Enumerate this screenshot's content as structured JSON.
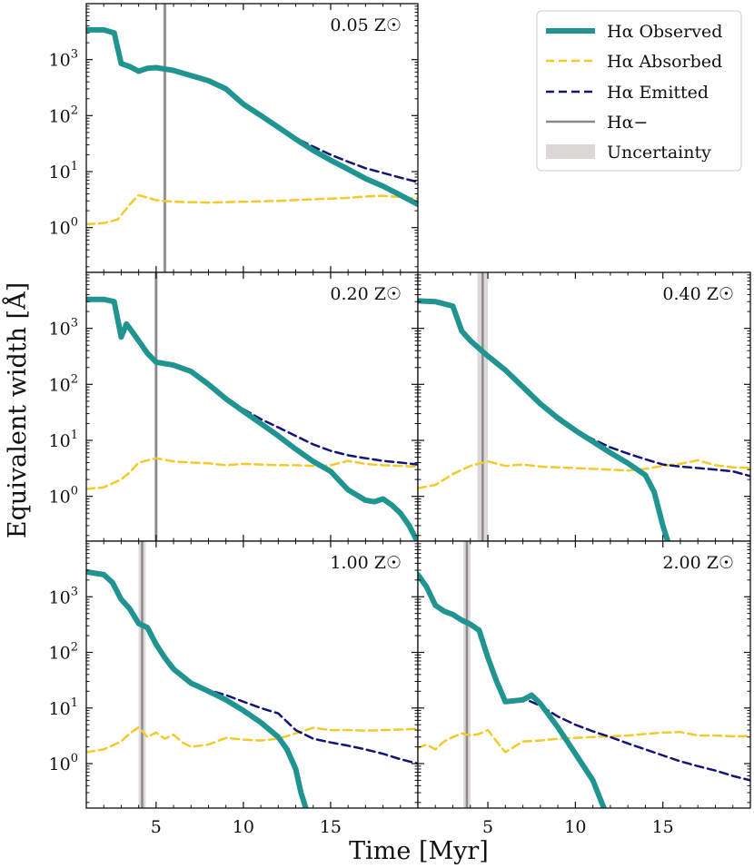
{
  "figure": {
    "xlabel": "Time [Myr]",
    "ylabel": "Equivalent width [Å]",
    "legend": {
      "placement": "top-right",
      "entries": [
        {
          "label": "Hα Observed",
          "style": "thick-solid",
          "color": "#1f9490"
        },
        {
          "label": "Hα Absorbed",
          "style": "dashed",
          "color": "#f5c92a"
        },
        {
          "label": "Hα Emitted",
          "style": "dashed",
          "color": "#141478"
        },
        {
          "label": "Hα−",
          "style": "solid",
          "color": "#8a8a8a"
        },
        {
          "label": "Uncertainty",
          "style": "band",
          "color": "#dcd8d8"
        }
      ]
    },
    "colors": {
      "observed": "#1f9490",
      "absorbed": "#f5c92a",
      "emitted": "#141478",
      "marker": "#8a8a8a",
      "band": "#dcd8d8"
    }
  },
  "chart_data": [
    {
      "type": "line",
      "panel": "0.05 Z☉",
      "xlim": [
        1,
        20
      ],
      "ylim_log10": [
        -0.8,
        4.0
      ],
      "yscale": "log",
      "xticks": [
        5,
        10,
        15
      ],
      "yticks": [
        "10^0",
        "10^1",
        "10^2",
        "10^3"
      ],
      "marker": {
        "t": 5.5,
        "band": [
          5.4,
          5.6
        ]
      },
      "series": [
        {
          "name": "Hα Observed",
          "x": [
            1,
            2,
            2.6,
            3,
            3.5,
            4,
            4.5,
            5,
            6,
            7,
            8,
            9,
            10,
            11,
            12,
            13,
            14,
            15,
            16,
            17,
            18,
            19,
            20
          ],
          "values": [
            3400,
            3400,
            3000,
            850,
            750,
            620,
            700,
            720,
            640,
            520,
            420,
            300,
            160,
            100,
            62,
            38,
            24,
            16,
            11,
            7.5,
            5.5,
            3.8,
            2.6
          ]
        },
        {
          "name": "Hα Absorbed",
          "x": [
            1,
            2,
            2.8,
            3.5,
            4,
            5,
            6,
            8,
            10,
            12,
            14,
            16,
            17,
            18,
            19,
            20
          ],
          "values": [
            1.15,
            1.2,
            1.4,
            2.6,
            3.8,
            3.1,
            2.9,
            2.8,
            2.9,
            3.0,
            3.2,
            3.4,
            3.6,
            3.7,
            3.5,
            3.3
          ]
        },
        {
          "name": "Hα Emitted",
          "x": [
            12,
            13,
            14,
            15,
            16,
            17,
            18,
            19,
            20
          ],
          "values": [
            62,
            40,
            28,
            20,
            15,
            11.5,
            9.5,
            7.8,
            6.5
          ]
        }
      ]
    },
    {
      "type": "line",
      "panel": "0.20 Z☉",
      "xlim": [
        1,
        20
      ],
      "ylim_log10": [
        -0.8,
        4.0
      ],
      "yscale": "log",
      "xticks": [
        5,
        10,
        15
      ],
      "yticks": [
        "10^0",
        "10^1",
        "10^2",
        "10^3"
      ],
      "marker": {
        "t": 5.0,
        "band": [
          4.9,
          5.1
        ]
      },
      "series": [
        {
          "name": "Hα Observed",
          "x": [
            1,
            2,
            2.6,
            3,
            3.3,
            3.6,
            4,
            4.5,
            5,
            6,
            7,
            8,
            9,
            10,
            11,
            12,
            13,
            14,
            15,
            16,
            17,
            17.5,
            18,
            18.5,
            19,
            19.5,
            20
          ],
          "values": [
            3300,
            3300,
            3000,
            700,
            1200,
            900,
            600,
            360,
            250,
            220,
            170,
            100,
            55,
            33,
            20,
            12,
            7,
            4.2,
            2.8,
            1.3,
            0.85,
            0.8,
            0.9,
            0.7,
            0.5,
            0.3,
            0.15
          ]
        },
        {
          "name": "Hα Absorbed",
          "x": [
            1,
            2,
            3,
            3.5,
            4,
            5,
            6,
            7,
            8,
            9,
            10,
            11,
            12,
            13,
            14,
            15,
            16,
            17,
            18,
            19,
            20
          ],
          "values": [
            1.35,
            1.45,
            2.0,
            2.7,
            4.0,
            4.8,
            4.2,
            4.0,
            3.9,
            3.6,
            3.8,
            3.7,
            3.6,
            3.6,
            3.5,
            3.6,
            4.3,
            3.8,
            3.6,
            3.5,
            3.4
          ]
        },
        {
          "name": "Hα Emitted",
          "x": [
            10,
            11,
            12,
            13,
            14,
            15,
            16,
            17,
            18,
            19,
            20
          ],
          "values": [
            36,
            24,
            17,
            12,
            8.5,
            6.5,
            5.4,
            4.8,
            4.3,
            4.0,
            3.7
          ]
        }
      ]
    },
    {
      "type": "line",
      "panel": "0.40 Z☉",
      "xlim": [
        1,
        20
      ],
      "ylim_log10": [
        -0.8,
        4.0
      ],
      "yscale": "log",
      "xticks": [
        5,
        10,
        15
      ],
      "yticks": [
        "10^0",
        "10^1",
        "10^2",
        "10^3"
      ],
      "marker": {
        "t": 4.7,
        "band": [
          4.4,
          5.0
        ]
      },
      "series": [
        {
          "name": "Hα Observed",
          "x": [
            1,
            2,
            3,
            3.5,
            4,
            5,
            6,
            7,
            8,
            9,
            10,
            11,
            12,
            13,
            14,
            14.5,
            15,
            15.3
          ],
          "values": [
            3100,
            3000,
            2500,
            900,
            600,
            320,
            180,
            90,
            45,
            25,
            15,
            9.5,
            6.0,
            3.9,
            2.4,
            1.2,
            0.3,
            0.15
          ]
        },
        {
          "name": "Hα Absorbed",
          "x": [
            1,
            2,
            3,
            4,
            5,
            6,
            7,
            8,
            9,
            10,
            11,
            12,
            13,
            14,
            15,
            16,
            17,
            18,
            19,
            20
          ],
          "values": [
            1.4,
            1.6,
            2.5,
            3.5,
            4.2,
            3.5,
            3.7,
            3.4,
            3.3,
            3.2,
            3.1,
            3.0,
            2.9,
            3.1,
            3.5,
            3.8,
            4.4,
            3.6,
            3.3,
            3.2
          ]
        },
        {
          "name": "Hα Emitted",
          "x": [
            10,
            11,
            12,
            13,
            14,
            15,
            16,
            17,
            18,
            19,
            20
          ],
          "values": [
            15,
            10.5,
            7.5,
            5.8,
            4.6,
            3.7,
            3.4,
            3.2,
            3.0,
            2.8,
            2.3
          ]
        }
      ]
    },
    {
      "type": "line",
      "panel": "1.00 Z☉",
      "xlim": [
        1,
        20
      ],
      "ylim_log10": [
        -0.8,
        4.0
      ],
      "yscale": "log",
      "xticks": [
        5,
        10,
        15
      ],
      "yticks": [
        "10^0",
        "10^1",
        "10^2",
        "10^3"
      ],
      "marker": {
        "t": 4.2,
        "band": [
          4.0,
          4.4
        ]
      },
      "series": [
        {
          "name": "Hα Observed",
          "x": [
            1,
            2,
            2.5,
            3,
            3.5,
            4,
            4.5,
            5,
            5.5,
            6,
            7,
            8,
            9,
            10,
            11,
            12,
            12.5,
            13,
            13.3,
            13.6
          ],
          "values": [
            2800,
            2500,
            1800,
            900,
            600,
            330,
            280,
            140,
            80,
            50,
            28,
            20,
            14,
            9,
            5.5,
            3.0,
            1.8,
            0.8,
            0.3,
            0.15
          ]
        },
        {
          "name": "Hα Absorbed",
          "x": [
            1,
            2,
            3,
            3.5,
            4,
            4.5,
            5,
            5.5,
            6,
            6.5,
            7,
            8,
            9,
            10,
            11,
            12,
            13,
            14,
            15,
            16,
            17,
            18,
            19,
            20
          ],
          "values": [
            1.6,
            1.8,
            2.5,
            3.5,
            4.5,
            3.0,
            3.6,
            2.8,
            3.3,
            2.4,
            2.0,
            2.2,
            2.9,
            2.7,
            2.6,
            2.8,
            3.5,
            4.4,
            4.0,
            4.0,
            3.9,
            4.0,
            4.1,
            4.2
          ]
        },
        {
          "name": "Hα Emitted",
          "x": [
            7,
            8,
            9,
            10,
            11,
            12,
            13,
            14,
            15,
            16,
            17,
            18,
            19,
            20
          ],
          "values": [
            28,
            21,
            17,
            13,
            10,
            8.0,
            4.0,
            2.8,
            2.4,
            2.1,
            1.8,
            1.5,
            1.2,
            1.0
          ]
        }
      ]
    },
    {
      "type": "line",
      "panel": "2.00 Z☉",
      "xlim": [
        1,
        20
      ],
      "ylim_log10": [
        -0.8,
        4.0
      ],
      "yscale": "log",
      "xticks": [
        5,
        10,
        15
      ],
      "yticks": [
        "10^0",
        "10^1",
        "10^2",
        "10^3"
      ],
      "marker": {
        "t": 3.8,
        "band": [
          3.6,
          4.0
        ]
      },
      "series": [
        {
          "name": "Hα Observed",
          "x": [
            1,
            1.5,
            2,
            2.5,
            3,
            3.5,
            4,
            4.5,
            5,
            5.5,
            6,
            7,
            7.5,
            8,
            9,
            10,
            11,
            11.5,
            11.8
          ],
          "values": [
            2500,
            1500,
            700,
            550,
            480,
            380,
            320,
            250,
            80,
            30,
            13,
            14,
            17,
            12,
            4.5,
            1.5,
            0.5,
            0.2,
            0.12
          ]
        },
        {
          "name": "Hα Absorbed",
          "x": [
            1,
            1.5,
            2,
            2.5,
            3,
            3.5,
            4,
            4.5,
            5,
            5.5,
            6,
            6.5,
            7,
            8,
            9,
            10,
            11,
            12,
            13,
            14,
            15,
            16,
            17,
            18,
            19,
            20
          ],
          "values": [
            1.9,
            2.2,
            1.8,
            2.5,
            3.0,
            3.5,
            3.2,
            3.4,
            4.0,
            2.5,
            1.6,
            2.0,
            2.5,
            2.6,
            2.8,
            2.9,
            3.0,
            3.1,
            3.2,
            3.4,
            3.6,
            3.7,
            3.2,
            3.2,
            3.1,
            3.1
          ]
        },
        {
          "name": "Hα Emitted",
          "x": [
            6,
            7,
            8,
            9,
            10,
            11,
            12,
            13,
            14,
            15,
            16,
            17,
            18,
            19,
            20
          ],
          "values": [
            13,
            15,
            11,
            7.0,
            5.0,
            3.8,
            3.0,
            2.3,
            1.8,
            1.4,
            1.1,
            0.9,
            0.75,
            0.6,
            0.5
          ]
        }
      ]
    }
  ]
}
